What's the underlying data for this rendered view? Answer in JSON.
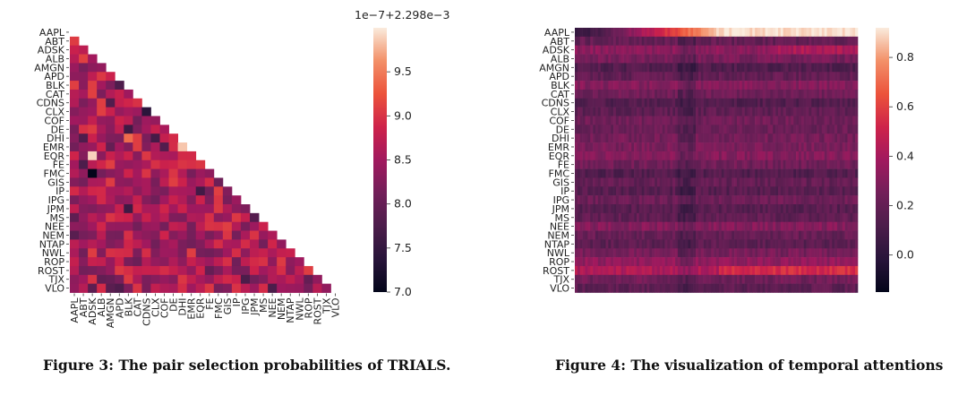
{
  "figure3": {
    "caption": "Figure 3: The pair selection probabilities of TRIALS."
  },
  "figure4": {
    "caption": "Figure 4: The visualization of temporal attentions"
  },
  "chart_data": [
    {
      "type": "heatmap",
      "title": "",
      "mask": "lower-triangle",
      "offset_label": "1e−7+2.298e−3",
      "colormap": "rocket",
      "colorbar_range": [
        7.0,
        10.0
      ],
      "colorbar_ticks": [
        7.0,
        7.5,
        8.0,
        8.5,
        9.0,
        9.5
      ],
      "colorbar_tick_labels": [
        "7.0",
        "7.5",
        "8.0",
        "8.5",
        "9.0",
        "9.5"
      ],
      "row_labels": [
        "AAPL",
        "ABT",
        "ADSK",
        "ALB",
        "AMGN",
        "APD",
        "BLK",
        "CAT",
        "CDNS",
        "CLX",
        "COF",
        "DE",
        "DHI",
        "EMR",
        "EQR",
        "FE",
        "FMC",
        "GIS",
        "IP",
        "IPG",
        "JPM",
        "MS",
        "NEE",
        "NEM",
        "NTAP",
        "NWL",
        "ROP",
        "ROST",
        "TJX",
        "VLO"
      ],
      "col_labels": [
        "AAPL",
        "ABT",
        "ADSK",
        "ALB",
        "AMGN",
        "APD",
        "BLK",
        "CAT",
        "CDNS",
        "CLX",
        "COF",
        "DE",
        "DHI",
        "EMR",
        "EQR",
        "FE",
        "FMC",
        "GIS",
        "IP",
        "IPG",
        "JPM",
        "MS",
        "NEE",
        "NEM",
        "NTAP",
        "NWL",
        "ROP",
        "ROST",
        "TJX",
        "VLO"
      ],
      "values_note": "lower-triangle values range approx 7.0–9.9 (x1e-7 offset); mostly 8.3–9.0, few dark cells near 7.0 (FMC–ADSK) and light cells near 9.9 (EQR–ADSK, EMR–DHI)"
    },
    {
      "type": "heatmap",
      "title": "",
      "colormap": "rocket",
      "colorbar_range": [
        -0.15,
        0.92
      ],
      "colorbar_ticks": [
        0.0,
        0.2,
        0.4,
        0.6,
        0.8
      ],
      "colorbar_tick_labels": [
        "0.0",
        "0.2",
        "0.4",
        "0.6",
        "0.8"
      ],
      "row_labels": [
        "AAPL",
        "ABT",
        "ADSK",
        "ALB",
        "AMGN",
        "APD",
        "BLK",
        "CAT",
        "CDNS",
        "CLX",
        "COF",
        "DE",
        "DHI",
        "EMR",
        "EQR",
        "FE",
        "FMC",
        "GIS",
        "IP",
        "IPG",
        "JPM",
        "MS",
        "NEE",
        "NEM",
        "NTAP",
        "NWL",
        "ROP",
        "ROST",
        "TJX",
        "VLO"
      ],
      "row_mean_attention": [
        0.62,
        0.2,
        0.32,
        0.26,
        0.14,
        0.2,
        0.3,
        0.24,
        0.14,
        0.18,
        0.24,
        0.22,
        0.25,
        0.27,
        0.3,
        0.24,
        0.14,
        0.2,
        0.16,
        0.23,
        0.16,
        0.19,
        0.3,
        0.21,
        0.17,
        0.26,
        0.34,
        0.42,
        0.24,
        0.18
      ],
      "values_note": "time steps on x axis (unlabeled, ~100 steps); AAPL row rises toward ~0.9 at later steps; darker vertical band near the middle of the time axis"
    }
  ]
}
